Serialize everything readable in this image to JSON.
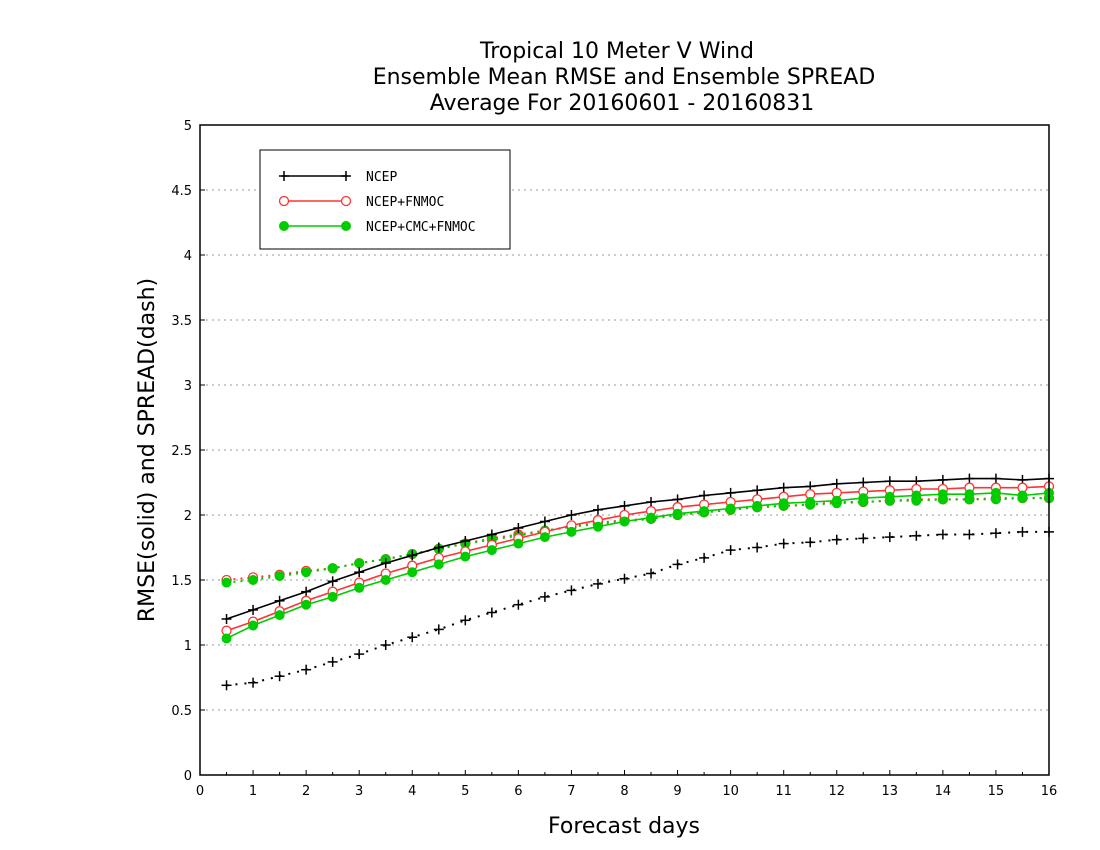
{
  "chart_data": {
    "type": "line",
    "title_lines": [
      "Tropical 10 Meter V Wind",
      "Ensemble Mean RMSE and Ensemble SPREAD",
      "Average For 20160601 - 20160831"
    ],
    "xlabel": "Forecast days",
    "ylabel": "RMSE(solid) and SPREAD(dash)",
    "xlim": [
      0,
      16
    ],
    "ylim": [
      0,
      5
    ],
    "x_ticks": [
      "0",
      "1",
      "2",
      "3",
      "4",
      "5",
      "6",
      "7",
      "8",
      "9",
      "10",
      "11",
      "12",
      "13",
      "14",
      "15",
      "16"
    ],
    "y_ticks": [
      "0",
      "0.5",
      "1",
      "1.5",
      "2",
      "2.5",
      "3",
      "3.5",
      "4",
      "4.5",
      "5"
    ],
    "grid": "horizontal-dotted",
    "legend_position": "top-left",
    "x": [
      0.5,
      1,
      1.5,
      2,
      2.5,
      3,
      3.5,
      4,
      4.5,
      5,
      5.5,
      6,
      6.5,
      7,
      7.5,
      8,
      8.5,
      9,
      9.5,
      10,
      10.5,
      11,
      11.5,
      12,
      12.5,
      13,
      13.5,
      14,
      14.5,
      15,
      15.5,
      16
    ],
    "series": [
      {
        "name": "NCEP",
        "color": "#000000",
        "marker": "plus",
        "rmse": [
          1.2,
          1.27,
          1.34,
          1.41,
          1.49,
          1.56,
          1.63,
          1.69,
          1.75,
          1.8,
          1.85,
          1.9,
          1.95,
          2.0,
          2.04,
          2.07,
          2.1,
          2.12,
          2.15,
          2.17,
          2.19,
          2.21,
          2.22,
          2.24,
          2.25,
          2.26,
          2.26,
          2.27,
          2.28,
          2.28,
          2.27,
          2.28
        ],
        "spread": [
          0.69,
          0.71,
          0.76,
          0.81,
          0.87,
          0.93,
          1.0,
          1.06,
          1.12,
          1.19,
          1.25,
          1.31,
          1.37,
          1.42,
          1.47,
          1.51,
          1.55,
          1.62,
          1.67,
          1.73,
          1.75,
          1.78,
          1.79,
          1.81,
          1.82,
          1.83,
          1.84,
          1.85,
          1.85,
          1.86,
          1.87,
          1.87
        ]
      },
      {
        "name": "NCEP+FNMOC",
        "color": "#ff3333",
        "marker": "open-circle",
        "rmse": [
          1.11,
          1.18,
          1.26,
          1.34,
          1.41,
          1.48,
          1.55,
          1.61,
          1.67,
          1.72,
          1.77,
          1.82,
          1.87,
          1.92,
          1.96,
          2.0,
          2.03,
          2.06,
          2.08,
          2.1,
          2.12,
          2.14,
          2.16,
          2.17,
          2.18,
          2.19,
          2.2,
          2.2,
          2.21,
          2.21,
          2.21,
          2.22
        ],
        "spread": [
          1.5,
          1.52,
          1.54,
          1.57,
          1.59,
          1.63,
          1.66,
          1.7,
          1.74,
          1.78,
          1.82,
          1.85,
          1.88,
          1.91,
          1.94,
          1.96,
          1.97,
          2.0,
          2.02,
          2.04,
          2.06,
          2.07,
          2.08,
          2.1,
          2.1,
          2.11,
          2.12,
          2.12,
          2.12,
          2.13,
          2.13,
          2.13
        ]
      },
      {
        "name": "NCEP+CMC+FNMOC",
        "color": "#00cc00",
        "marker": "filled-circle",
        "rmse": [
          1.05,
          1.15,
          1.23,
          1.31,
          1.37,
          1.44,
          1.5,
          1.56,
          1.62,
          1.68,
          1.73,
          1.78,
          1.83,
          1.87,
          1.91,
          1.95,
          1.98,
          2.01,
          2.03,
          2.05,
          2.07,
          2.09,
          2.1,
          2.11,
          2.13,
          2.14,
          2.15,
          2.16,
          2.16,
          2.17,
          2.15,
          2.17
        ],
        "spread": [
          1.48,
          1.5,
          1.53,
          1.56,
          1.59,
          1.63,
          1.66,
          1.7,
          1.74,
          1.78,
          1.81,
          1.84,
          1.88,
          1.91,
          1.93,
          1.95,
          1.97,
          2.0,
          2.02,
          2.04,
          2.06,
          2.07,
          2.08,
          2.09,
          2.1,
          2.11,
          2.11,
          2.12,
          2.12,
          2.12,
          2.13,
          2.13
        ]
      }
    ]
  }
}
